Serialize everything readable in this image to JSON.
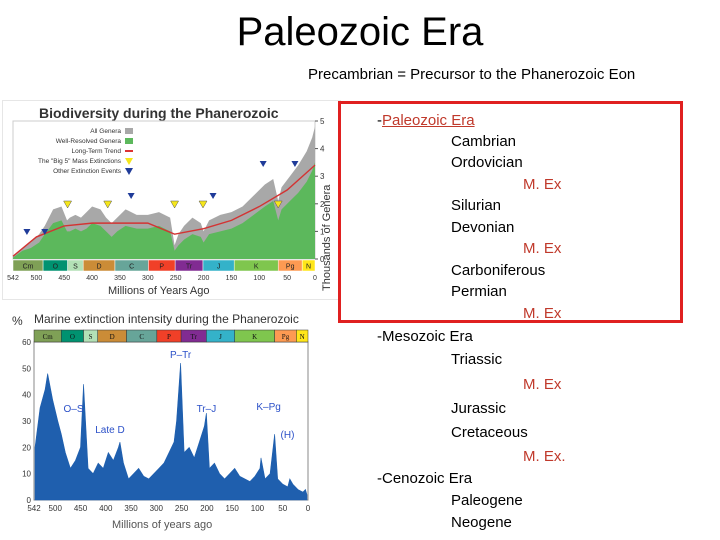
{
  "slide": {
    "title": "Paleozoic Era",
    "subtitle": "Precambrian = Precursor to the Phanerozoic Eon"
  },
  "figure_top": {
    "title": "Biodiversity during the Phanerozoic",
    "legend": [
      "All Genera",
      "Well-Resolved Genera",
      "Long-Term Trend",
      "The \"Big 5\" Mass Extinctions",
      "Other Extinction Events"
    ],
    "xlabel": "Millions of Years Ago",
    "ylabel": "Thousands of Genera",
    "colors": {
      "all": "#a8a8a8",
      "resolved": "#5cb85c",
      "trend": "#d33333",
      "big5": "#f5e61b",
      "other": "#1f3b99"
    }
  },
  "figure_bottom": {
    "title": "Marine extinction intensity during the Phanerozoic",
    "y_unit": "%",
    "xlabel": "Millions of years ago",
    "annotations": [
      "P–Tr",
      "O–S",
      "Tr–J",
      "K–Pg",
      "Late D",
      "(H)"
    ]
  },
  "chart_data": [
    {
      "type": "area",
      "title": "Biodiversity during the Phanerozoic",
      "xlabel": "Millions of Years Ago",
      "ylabel": "Thousands of Genera",
      "xlim": [
        542,
        0
      ],
      "ylim": [
        0,
        5
      ],
      "x_ticks": [
        "542",
        "500",
        "450",
        "400",
        "350",
        "300",
        "250",
        "200",
        "150",
        "100",
        "50",
        "0"
      ],
      "y_ticks": [
        "0",
        "1",
        "2",
        "3",
        "4",
        "5"
      ],
      "periods": [
        "Cm",
        "O",
        "S",
        "D",
        "C",
        "P",
        "Tr",
        "J",
        "K",
        "Pg",
        "N"
      ],
      "period_bounds": [
        542,
        488,
        444,
        416,
        359,
        299,
        251,
        201,
        145,
        66,
        23,
        0
      ],
      "period_colors": [
        "#7fa056",
        "#009270",
        "#b3e1b6",
        "#cb8c37",
        "#67a599",
        "#f04028",
        "#812b92",
        "#34b2c9",
        "#7fc64e",
        "#fd9a52",
        "#ffe619"
      ],
      "series": [
        {
          "name": "All Genera",
          "x": [
            542,
            525,
            510,
            495,
            485,
            470,
            455,
            445,
            440,
            430,
            420,
            410,
            400,
            385,
            375,
            365,
            355,
            340,
            320,
            300,
            280,
            260,
            252,
            245,
            235,
            220,
            205,
            200,
            190,
            170,
            150,
            130,
            110,
            90,
            75,
            66,
            60,
            45,
            30,
            15,
            5,
            0
          ],
          "values": [
            0.1,
            0.4,
            0.6,
            0.9,
            1.2,
            1.8,
            1.9,
            1.4,
            1.5,
            1.6,
            1.5,
            1.7,
            1.9,
            1.8,
            1.5,
            1.3,
            1.5,
            1.8,
            1.6,
            1.6,
            1.7,
            1.5,
            0.5,
            0.9,
            1.2,
            1.5,
            1.3,
            1.0,
            1.4,
            1.6,
            1.7,
            1.9,
            2.3,
            2.7,
            2.9,
            2.1,
            2.6,
            3.0,
            3.4,
            3.9,
            4.4,
            4.8
          ]
        },
        {
          "name": "Well-Resolved Genera",
          "x": [
            542,
            525,
            510,
            495,
            485,
            470,
            455,
            445,
            440,
            430,
            420,
            410,
            400,
            385,
            375,
            365,
            355,
            340,
            320,
            300,
            280,
            260,
            252,
            245,
            235,
            220,
            205,
            200,
            190,
            170,
            150,
            130,
            110,
            90,
            75,
            66,
            60,
            45,
            30,
            15,
            5,
            0
          ],
          "values": [
            0.05,
            0.3,
            0.4,
            0.6,
            0.9,
            1.3,
            1.4,
            1.0,
            1.0,
            1.1,
            1.0,
            1.1,
            1.3,
            1.2,
            1.0,
            0.8,
            1.0,
            1.2,
            1.1,
            1.1,
            1.2,
            1.0,
            0.3,
            0.5,
            0.7,
            0.9,
            0.8,
            0.6,
            0.9,
            1.0,
            1.1,
            1.3,
            1.6,
            1.9,
            2.1,
            1.4,
            1.8,
            2.1,
            2.4,
            2.8,
            3.2,
            3.5
          ]
        },
        {
          "name": "Long-Term Trend",
          "x": [
            542,
            500,
            450,
            400,
            350,
            300,
            252,
            200,
            150,
            100,
            50,
            0
          ],
          "values": [
            0.1,
            0.8,
            1.2,
            1.3,
            1.3,
            1.3,
            0.9,
            1.1,
            1.4,
            1.9,
            2.5,
            3.4
          ]
        }
      ],
      "big5_extinctions": [
        444,
        372,
        252,
        201,
        66
      ],
      "other_extinctions": [
        517,
        485,
        330,
        183,
        93,
        36
      ]
    },
    {
      "type": "bar",
      "title": "Marine extinction intensity during the Phanerozoic",
      "xlabel": "Millions of years ago",
      "ylabel": "%",
      "xlim": [
        542,
        0
      ],
      "ylim": [
        0,
        60
      ],
      "x_ticks": [
        "542",
        "500",
        "450",
        "400",
        "350",
        "300",
        "250",
        "200",
        "150",
        "100",
        "50",
        "0"
      ],
      "y_ticks": [
        "0",
        "10",
        "20",
        "30",
        "40",
        "50",
        "60"
      ],
      "periods": [
        "Cm",
        "O",
        "S",
        "D",
        "C",
        "P",
        "Tr",
        "J",
        "K",
        "Pg",
        "N"
      ],
      "annotations": [
        {
          "label": "P–Tr",
          "x": 252
        },
        {
          "label": "O–S",
          "x": 444
        },
        {
          "label": "Tr–J",
          "x": 201
        },
        {
          "label": "K–Pg",
          "x": 66
        },
        {
          "label": "Late D",
          "x": 372
        },
        {
          "label": "(H)",
          "x": 5
        }
      ],
      "x": [
        540,
        530,
        520,
        515,
        505,
        495,
        488,
        480,
        470,
        460,
        450,
        444,
        435,
        425,
        415,
        405,
        395,
        385,
        375,
        372,
        365,
        355,
        345,
        335,
        325,
        315,
        305,
        295,
        285,
        275,
        265,
        260,
        252,
        245,
        235,
        225,
        215,
        205,
        201,
        195,
        185,
        175,
        165,
        155,
        145,
        135,
        125,
        115,
        105,
        95,
        93,
        85,
        75,
        66,
        60,
        50,
        40,
        36,
        30,
        20,
        10,
        5,
        2
      ],
      "values": [
        20,
        35,
        42,
        48,
        38,
        30,
        25,
        18,
        12,
        15,
        20,
        44,
        12,
        10,
        14,
        12,
        18,
        15,
        20,
        22,
        14,
        8,
        10,
        12,
        9,
        8,
        10,
        12,
        14,
        18,
        22,
        30,
        52,
        18,
        20,
        16,
        22,
        28,
        33,
        12,
        14,
        10,
        8,
        10,
        12,
        9,
        8,
        7,
        9,
        12,
        16,
        8,
        10,
        25,
        8,
        6,
        5,
        8,
        6,
        4,
        3,
        4,
        2
      ]
    }
  ],
  "outline": {
    "paleozoic": {
      "label": "Paleozoic Era",
      "prefix": "-",
      "items": [
        {
          "label": "Cambrian",
          "extinction": null
        },
        {
          "label": "Ordovician",
          "extinction": "M. Ex"
        },
        {
          "label": "Silurian",
          "extinction": null
        },
        {
          "label": "Devonian",
          "extinction": "M. Ex"
        },
        {
          "label": "Carboniferous",
          "extinction": null
        },
        {
          "label": "Permian",
          "extinction": "M. Ex"
        }
      ]
    },
    "mesozoic": {
      "label": "-Mesozoic Era",
      "items": [
        {
          "label": "Triassic",
          "extinction": "M. Ex"
        },
        {
          "label": "Jurassic",
          "extinction": null
        },
        {
          "label": "Cretaceous",
          "extinction": "M. Ex."
        }
      ]
    },
    "cenozoic": {
      "label": "-Cenozoic Era",
      "items": [
        {
          "label": "Paleogene",
          "extinction": null
        },
        {
          "label": "Neogene",
          "extinction": null
        }
      ]
    }
  }
}
